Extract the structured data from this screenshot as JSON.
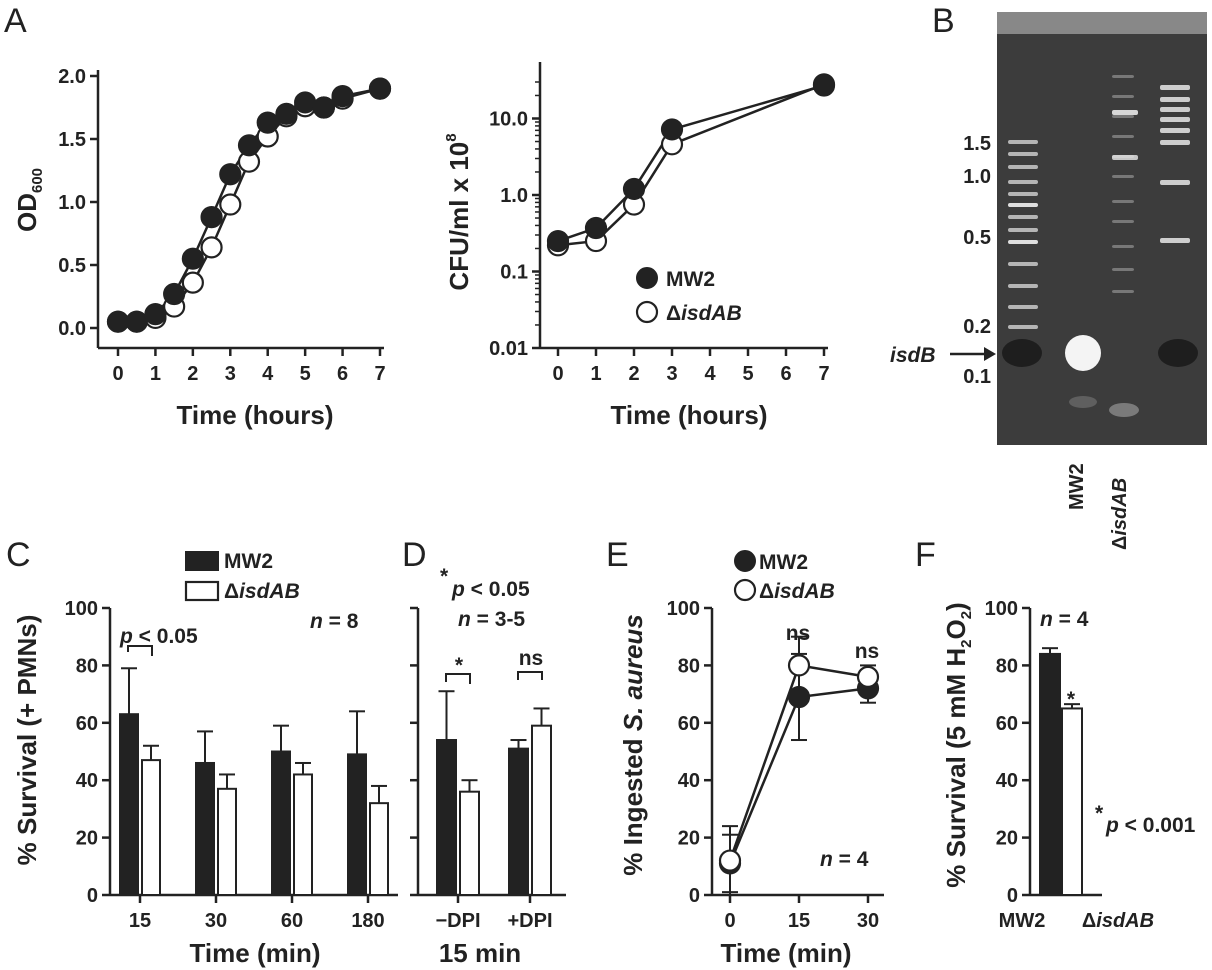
{
  "panel_labels": {
    "a": "A",
    "b": "B",
    "c": "C",
    "d": "D",
    "e": "E",
    "f": "F"
  },
  "legend": {
    "mw2": "MW2",
    "mut_prefix": "Δ",
    "mut_name": "isdAB"
  },
  "colors": {
    "mw2_fill": "#222222",
    "mut_fill": "#ffffff",
    "gel_bg": "#3c3c3c",
    "gel_band": "#e8e8e8"
  },
  "chart_data": [
    {
      "id": "A1",
      "type": "line",
      "x": [
        0,
        0.5,
        1,
        1.5,
        2,
        2.5,
        3,
        3.5,
        4,
        4.5,
        5,
        5.5,
        6,
        7
      ],
      "series": [
        {
          "name": "MW2",
          "values": [
            0.05,
            0.05,
            0.11,
            0.27,
            0.55,
            0.88,
            1.22,
            1.45,
            1.63,
            1.7,
            1.79,
            1.75,
            1.84,
            1.9
          ]
        },
        {
          "name": "ΔisdAB",
          "values": [
            0.05,
            0.05,
            0.08,
            0.17,
            0.36,
            0.64,
            0.98,
            1.32,
            1.52,
            1.68,
            1.76,
            1.75,
            1.82,
            1.9
          ]
        }
      ],
      "xlabel": "Time (hours)",
      "ylabel": "OD",
      "ylabel_sub": "600",
      "xlim": [
        0,
        7
      ],
      "ylim": [
        0,
        2
      ],
      "xticks": [
        "0",
        "1",
        "2",
        "3",
        "4",
        "5",
        "6",
        "7"
      ],
      "yticks": [
        "0.0",
        "0.5",
        "1.0",
        "1.5",
        "2.0"
      ]
    },
    {
      "id": "A2",
      "type": "line",
      "yscale": "log",
      "x": [
        0,
        1,
        2,
        3,
        7
      ],
      "series": [
        {
          "name": "MW2",
          "values": [
            0.25,
            0.37,
            1.2,
            7.2,
            27
          ]
        },
        {
          "name": "ΔisdAB",
          "values": [
            0.22,
            0.25,
            0.75,
            4.6,
            28
          ]
        }
      ],
      "xlabel": "Time (hours)",
      "ylabel": "CFU/ml x 10",
      "ylabel_sup": "8",
      "xlim": [
        0,
        7
      ],
      "ylim": [
        0.01,
        30
      ],
      "xticks": [
        "0",
        "1",
        "2",
        "3",
        "4",
        "5",
        "6",
        "7"
      ],
      "yticks": [
        "0.01",
        "0.1",
        "1.0",
        "10.0"
      ],
      "legend": "bottom-right"
    },
    {
      "id": "B",
      "type": "gel",
      "ladder_labels": [
        "1.5",
        "1.0",
        "0.5",
        "0.2",
        "0.1"
      ],
      "arrow_label": "isdB",
      "lane_labels": [
        "MW2",
        "ΔisdAB"
      ]
    },
    {
      "id": "C",
      "type": "bar",
      "categories": [
        "15",
        "30",
        "60",
        "180"
      ],
      "series": [
        {
          "name": "MW2",
          "values": [
            63,
            46,
            50,
            49
          ],
          "errors": [
            16,
            11,
            9,
            15
          ]
        },
        {
          "name": "ΔisdAB",
          "values": [
            47,
            37,
            42,
            32
          ],
          "errors": [
            5,
            5,
            4,
            6
          ]
        }
      ],
      "xlabel": "Time (min)",
      "ylabel": "% Survival (+ PMNs)",
      "ylim": [
        0,
        100
      ],
      "yticks": [
        "0",
        "20",
        "40",
        "60",
        "80",
        "100"
      ],
      "annotations": {
        "sig": "p < 0.05",
        "sig_p": "p",
        "sig_rest": " < 0.05",
        "n": "n = 8",
        "n_i": "n",
        "n_rest": " = 8"
      }
    },
    {
      "id": "D",
      "type": "bar",
      "categories": [
        "−DPI",
        "+DPI"
      ],
      "series": [
        {
          "name": "MW2",
          "values": [
            54,
            51
          ],
          "errors": [
            17,
            3
          ]
        },
        {
          "name": "ΔisdAB",
          "values": [
            36,
            59
          ],
          "errors": [
            4,
            6
          ]
        }
      ],
      "xlabel": "15 min",
      "ylim": [
        0,
        100
      ],
      "annotations": {
        "star": "*",
        "p_i": "p",
        "p_rest": " < 0.05",
        "n_i": "n",
        "n_rest": " = 3-5",
        "sig1": "*",
        "sig2": "ns"
      }
    },
    {
      "id": "E",
      "type": "line",
      "x": [
        0,
        15,
        30
      ],
      "series": [
        {
          "name": "MW2",
          "values": [
            11,
            69,
            72
          ],
          "errors": [
            10,
            15,
            5
          ]
        },
        {
          "name": "ΔisdAB",
          "values": [
            12,
            80,
            76
          ],
          "errors": [
            12,
            10,
            4
          ]
        }
      ],
      "xlabel": "Time (min)",
      "ylabel_pre": "% Ingested ",
      "ylabel_it": "S. aureus",
      "xlim": [
        0,
        30
      ],
      "ylim": [
        0,
        100
      ],
      "xticks": [
        "0",
        "15",
        "30"
      ],
      "yticks": [
        "0",
        "20",
        "40",
        "60",
        "80",
        "100"
      ],
      "annotations": {
        "ns1": "ns",
        "ns2": "ns",
        "n_i": "n",
        "n_rest": " = 4"
      },
      "legend": "top-left"
    },
    {
      "id": "F",
      "type": "bar",
      "categories": [
        "MW2",
        "ΔisdAB"
      ],
      "values": [
        84,
        65
      ],
      "errors": [
        2,
        1.5
      ],
      "ylabel_pre": "% Survival (5 mM H",
      "ylabel_sub1": "2",
      "ylabel_mid": "O",
      "ylabel_sub2": "2",
      "ylabel_post": ")",
      "ylim": [
        0,
        100
      ],
      "yticks": [
        "0",
        "20",
        "40",
        "60",
        "80",
        "100"
      ],
      "annotations": {
        "n_i": "n",
        "n_rest": " = 4",
        "star": "*",
        "p_star": "*",
        "p_i": "p",
        "p_rest": " < 0.001"
      }
    }
  ]
}
